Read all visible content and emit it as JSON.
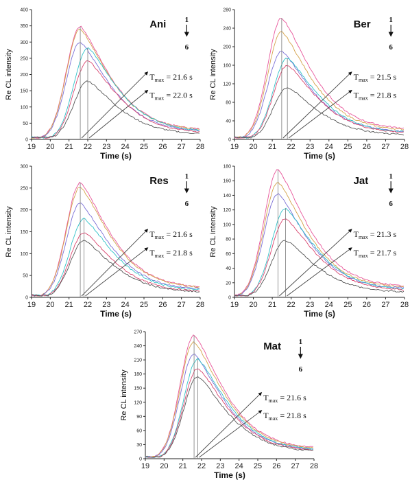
{
  "chart_data": [
    {
      "type": "line",
      "name": "Ani",
      "xlabel": "Time (s)",
      "ylabel": "Re CL intensity",
      "xlim": [
        19,
        28
      ],
      "ylim": [
        0,
        400
      ],
      "xticks": [
        19,
        20,
        21,
        22,
        23,
        24,
        25,
        26,
        27,
        28
      ],
      "yticks": [
        0,
        50,
        100,
        150,
        200,
        250,
        300,
        350,
        400
      ],
      "series_index_top": "1",
      "series_index_bottom": "6",
      "peak_heights": [
        348,
        340,
        300,
        282,
        242,
        180
      ],
      "tmax": [
        {
          "label": "T",
          "sub": "max",
          "value": " = 21.6 s",
          "x": 21.6
        },
        {
          "label": "T",
          "sub": "max",
          "value": " = 22.0 s",
          "x": 22.0
        }
      ]
    },
    {
      "type": "line",
      "name": "Ber",
      "xlabel": "Time (s)",
      "ylabel": "Re CL intensity",
      "xlim": [
        19,
        28
      ],
      "ylim": [
        0,
        280
      ],
      "xticks": [
        19,
        20,
        21,
        22,
        23,
        24,
        25,
        26,
        27,
        28
      ],
      "yticks": [
        0,
        40,
        80,
        120,
        160,
        200,
        240,
        280
      ],
      "series_index_top": "1",
      "series_index_bottom": "6",
      "peak_heights": [
        262,
        232,
        190,
        175,
        160,
        112
      ],
      "tmax": [
        {
          "label": "T",
          "sub": "max",
          "value": " = 21.5 s",
          "x": 21.5
        },
        {
          "label": "T",
          "sub": "max",
          "value": " = 21.8 s",
          "x": 21.8
        }
      ]
    },
    {
      "type": "line",
      "name": "Res",
      "xlabel": "Time (s)",
      "ylabel": "Re CL intensity",
      "xlim": [
        19,
        28
      ],
      "ylim": [
        0,
        300
      ],
      "xticks": [
        19,
        20,
        21,
        22,
        23,
        24,
        25,
        26,
        27,
        28
      ],
      "yticks": [
        0,
        50,
        100,
        150,
        200,
        250,
        300
      ],
      "series_index_top": "1",
      "series_index_bottom": "6",
      "peak_heights": [
        262,
        252,
        215,
        180,
        148,
        130
      ],
      "tmax": [
        {
          "label": "T",
          "sub": "max",
          "value": " = 21.6 s",
          "x": 21.6
        },
        {
          "label": "T",
          "sub": "max",
          "value": " = 21.8 s",
          "x": 21.8
        }
      ]
    },
    {
      "type": "line",
      "name": "Jat",
      "xlabel": "Time (s)",
      "ylabel": "Re CL intensity",
      "xlim": [
        19,
        28
      ],
      "ylim": [
        0,
        180
      ],
      "xticks": [
        19,
        20,
        21,
        22,
        23,
        24,
        25,
        26,
        27,
        28
      ],
      "yticks": [
        0,
        20,
        40,
        60,
        80,
        100,
        120,
        140,
        160,
        180
      ],
      "series_index_top": "1",
      "series_index_bottom": "6",
      "peak_heights": [
        175,
        158,
        142,
        122,
        108,
        78
      ],
      "tmax": [
        {
          "label": "T",
          "sub": "max",
          "value": " = 21.3 s",
          "x": 21.3
        },
        {
          "label": "T",
          "sub": "max",
          "value": " = 21.7 s",
          "x": 21.7
        }
      ]
    },
    {
      "type": "line",
      "name": "Mat",
      "xlabel": "Time (s)",
      "ylabel": "Re CL intensity",
      "xlim": [
        19,
        28
      ],
      "ylim": [
        0,
        270
      ],
      "xticks": [
        19,
        20,
        21,
        22,
        23,
        24,
        25,
        26,
        27,
        28
      ],
      "yticks": [
        0,
        30,
        60,
        90,
        120,
        150,
        180,
        210,
        240,
        270
      ],
      "series_index_top": "1",
      "series_index_bottom": "6",
      "peak_heights": [
        262,
        248,
        222,
        212,
        192,
        175
      ],
      "tmax": [
        {
          "label": "T",
          "sub": "max",
          "value": " = 21.6 s",
          "x": 21.6
        },
        {
          "label": "T",
          "sub": "max",
          "value": " = 21.8 s",
          "x": 21.8
        }
      ]
    }
  ],
  "colors": [
    "#e8559a",
    "#d4a24a",
    "#7b6fd6",
    "#2fc2c8",
    "#d9456e",
    "#555555"
  ]
}
